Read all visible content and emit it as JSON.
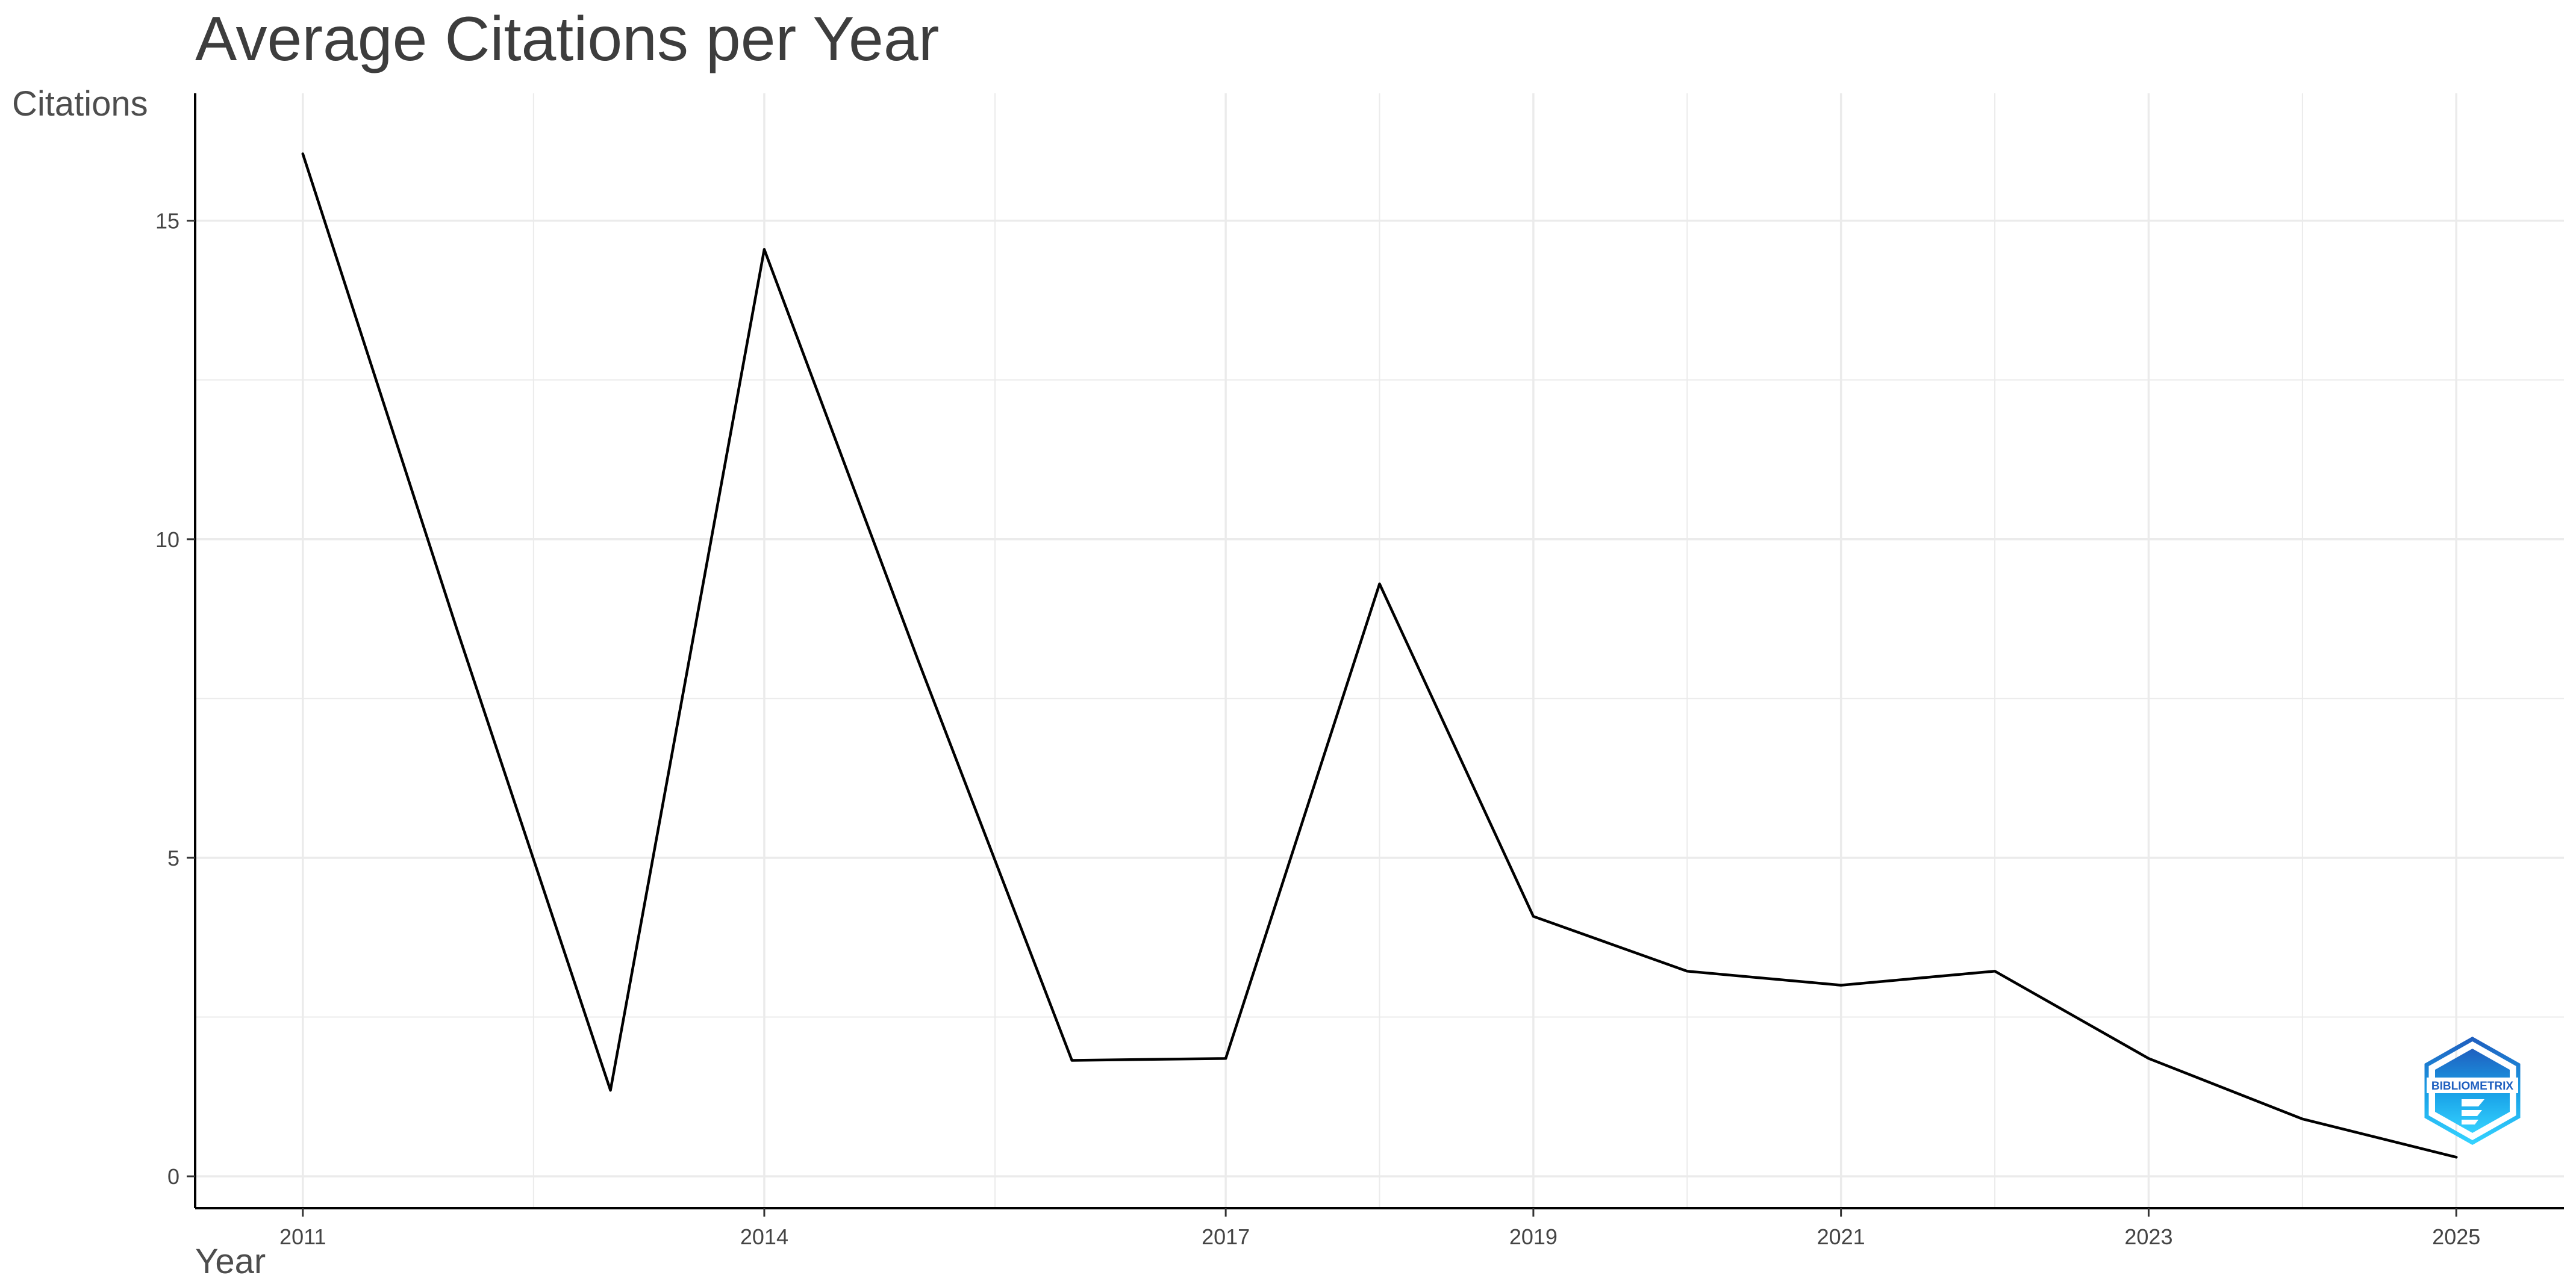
{
  "chart_data": {
    "type": "line",
    "title": "Average Citations per Year",
    "xlabel": "Year",
    "ylabel": "Citations",
    "x": [
      2011,
      2012,
      2013,
      2014,
      2015,
      2016,
      2017,
      2018,
      2019,
      2020,
      2021,
      2022,
      2023,
      2024,
      2025
    ],
    "series": [
      {
        "values": [
          16.05,
          8.6,
          1.35,
          14.55,
          8.1,
          1.82,
          1.85,
          9.3,
          4.08,
          3.22,
          3.0,
          3.22,
          1.85,
          0.9,
          0.3
        ]
      }
    ],
    "x_ticks": [
      "2011",
      "2014",
      "2017",
      "2019",
      "2021",
      "2023",
      "2025"
    ],
    "y_ticks": [
      "0",
      "5",
      "10",
      "15"
    ],
    "xlim": [
      2010.3,
      2025.7
    ],
    "ylim": [
      -0.5,
      17
    ],
    "grid": true,
    "legend": "none",
    "line_color": "#000000",
    "grid_color": "#ebebeb",
    "logo": {
      "text": "BIBLIOMETRIX",
      "colors": [
        "#1f5fbf",
        "#1aa3e8",
        "#34d2ff"
      ]
    }
  }
}
